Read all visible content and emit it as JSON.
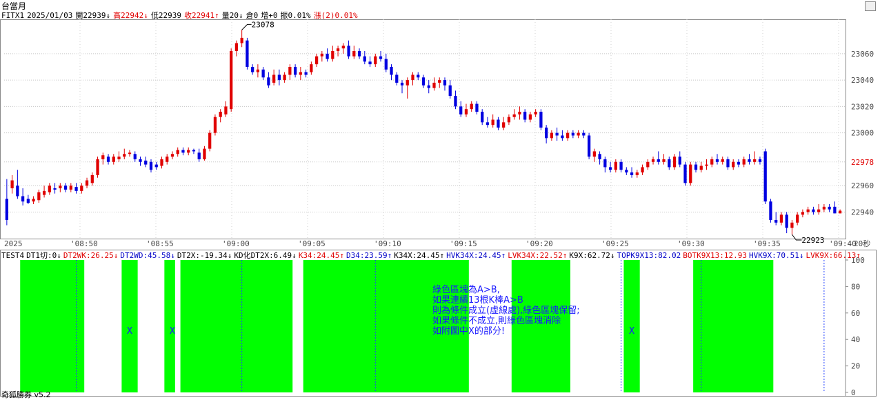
{
  "header": {
    "title": "台當月",
    "info": [
      {
        "text": "FITX1",
        "color": "#000000"
      },
      {
        "text": "2025/01/03",
        "color": "#000000"
      },
      {
        "text": "開22939↓",
        "color": "#000000"
      },
      {
        "text": "高22942↓",
        "color": "#e00000"
      },
      {
        "text": "低22939",
        "color": "#000000"
      },
      {
        "text": "收22941↑",
        "color": "#e00000"
      },
      {
        "text": "量20↓",
        "color": "#000000"
      },
      {
        "text": "倉0",
        "color": "#000000"
      },
      {
        "text": "增+0",
        "color": "#000000"
      },
      {
        "text": "振0.01%",
        "color": "#000000"
      },
      {
        "text": "漲(2)0.01%",
        "color": "#e00000"
      }
    ]
  },
  "chart_data": {
    "type": "candlestick",
    "ylim": [
      22923,
      23085
    ],
    "yticks": [
      "23060",
      "23040",
      "23020",
      "23000",
      "22978",
      "22960",
      "22940"
    ],
    "ylast": "22978",
    "xticks": [
      "2025",
      "'08:50",
      "'08:55",
      "'09:00",
      "'09:05",
      "'09:10",
      "'09:15",
      "'09:20",
      "'09:25",
      "'09:30",
      "'09:35",
      "'09:40"
    ],
    "xunit": "20秒",
    "high_label": "23078",
    "low_label": "22923",
    "candles": [
      [
        22950,
        22934,
        22930,
        22965
      ],
      [
        22958,
        22964,
        22954,
        22968
      ],
      [
        22960,
        22952,
        22950,
        22972
      ],
      [
        22952,
        22948,
        22945,
        22958
      ],
      [
        22950,
        22947,
        22946,
        22953
      ],
      [
        22948,
        22950,
        22946,
        22952
      ],
      [
        22949,
        22955,
        22947,
        22957
      ],
      [
        22953,
        22956,
        22951,
        22960
      ],
      [
        22955,
        22960,
        22953,
        22962
      ],
      [
        22958,
        22957,
        22954,
        22962
      ],
      [
        22958,
        22960,
        22955,
        22962
      ],
      [
        22960,
        22957,
        22955,
        22962
      ],
      [
        22957,
        22960,
        22955,
        22962
      ],
      [
        22959,
        22956,
        22954,
        22962
      ],
      [
        22956,
        22960,
        22954,
        22962
      ],
      [
        22960,
        22964,
        22958,
        22966
      ],
      [
        22962,
        22968,
        22960,
        22970
      ],
      [
        22968,
        22980,
        22966,
        22982
      ],
      [
        22980,
        22983,
        22976,
        22985
      ],
      [
        22982,
        22978,
        22976,
        22984
      ],
      [
        22978,
        22982,
        22976,
        22984
      ],
      [
        22980,
        22982,
        22978,
        22986
      ],
      [
        22982,
        22984,
        22980,
        22988
      ],
      [
        22984,
        22985,
        22982,
        22987
      ],
      [
        22984,
        22980,
        22978,
        22986
      ],
      [
        22980,
        22978,
        22975,
        22982
      ],
      [
        22979,
        22976,
        22974,
        22982
      ],
      [
        22978,
        22972,
        22970,
        22980
      ],
      [
        22976,
        22974,
        22972,
        22978
      ],
      [
        22975,
        22980,
        22973,
        22982
      ],
      [
        22978,
        22982,
        22976,
        22984
      ],
      [
        22982,
        22984,
        22980,
        22986
      ],
      [
        22984,
        22987,
        22982,
        22989
      ],
      [
        22987,
        22985,
        22983,
        22989
      ],
      [
        22985,
        22987,
        22983,
        22989
      ],
      [
        22987,
        22986,
        22984,
        22988
      ],
      [
        22985,
        22980,
        22978,
        22988
      ],
      [
        22980,
        22988,
        22979,
        22990
      ],
      [
        22988,
        23000,
        22986,
        23002
      ],
      [
        23000,
        23012,
        22998,
        23014
      ],
      [
        23012,
        23016,
        23008,
        23018
      ],
      [
        23014,
        23020,
        23012,
        23024
      ],
      [
        23018,
        23062,
        23016,
        23064
      ],
      [
        23062,
        23068,
        23058,
        23070
      ],
      [
        23068,
        23072,
        23065,
        23078
      ],
      [
        23070,
        23050,
        23048,
        23072
      ],
      [
        23050,
        23046,
        23044,
        23052
      ],
      [
        23046,
        23048,
        23042,
        23052
      ],
      [
        23048,
        23042,
        23040,
        23050
      ],
      [
        23042,
        23036,
        23034,
        23046
      ],
      [
        23038,
        23044,
        23036,
        23048
      ],
      [
        23044,
        23040,
        23036,
        23048
      ],
      [
        23040,
        23044,
        23038,
        23046
      ],
      [
        23044,
        23050,
        23040,
        23052
      ],
      [
        23050,
        23044,
        23042,
        23052
      ],
      [
        23044,
        23046,
        23040,
        23050
      ],
      [
        23046,
        23044,
        23042,
        23048
      ],
      [
        23046,
        23052,
        23044,
        23054
      ],
      [
        23052,
        23058,
        23050,
        23060
      ],
      [
        23058,
        23060,
        23054,
        23062
      ],
      [
        23060,
        23056,
        23054,
        23064
      ],
      [
        23056,
        23062,
        23054,
        23066
      ],
      [
        23062,
        23064,
        23058,
        23066
      ],
      [
        23064,
        23066,
        23060,
        23068
      ],
      [
        23066,
        23058,
        23056,
        23070
      ],
      [
        23058,
        23062,
        23056,
        23066
      ],
      [
        23062,
        23058,
        23056,
        23064
      ],
      [
        23058,
        23054,
        23052,
        23062
      ],
      [
        23054,
        23052,
        23050,
        23058
      ],
      [
        23052,
        23058,
        23050,
        23060
      ],
      [
        23058,
        23056,
        23054,
        23062
      ],
      [
        23056,
        23048,
        23046,
        23060
      ],
      [
        23050,
        23044,
        23040,
        23052
      ],
      [
        23044,
        23038,
        23036,
        23046
      ],
      [
        23038,
        23036,
        23030,
        23040
      ],
      [
        23036,
        23040,
        23026,
        23042
      ],
      [
        23040,
        23044,
        23036,
        23046
      ],
      [
        23044,
        23042,
        23040,
        23046
      ],
      [
        23042,
        23036,
        23034,
        23044
      ],
      [
        23036,
        23034,
        23030,
        23040
      ],
      [
        23034,
        23038,
        23032,
        23042
      ],
      [
        23038,
        23040,
        23034,
        23042
      ],
      [
        23040,
        23036,
        23032,
        23042
      ],
      [
        23036,
        23028,
        23026,
        23040
      ],
      [
        23028,
        23020,
        23018,
        23032
      ],
      [
        23020,
        23014,
        23012,
        23024
      ],
      [
        23014,
        23018,
        23012,
        23022
      ],
      [
        23018,
        23022,
        23016,
        23024
      ],
      [
        23022,
        23016,
        23014,
        23024
      ],
      [
        23016,
        23008,
        23006,
        23018
      ],
      [
        23008,
        23006,
        23004,
        23012
      ],
      [
        23006,
        23010,
        23004,
        23014
      ],
      [
        23010,
        23004,
        23002,
        23012
      ],
      [
        23004,
        23008,
        23002,
        23012
      ],
      [
        23008,
        23012,
        23006,
        23014
      ],
      [
        23012,
        23014,
        23010,
        23018
      ],
      [
        23014,
        23016,
        23010,
        23020
      ],
      [
        23016,
        23010,
        23008,
        23018
      ],
      [
        23010,
        23014,
        23008,
        23016
      ],
      [
        23014,
        23016,
        23012,
        23018
      ],
      [
        23016,
        23004,
        23002,
        23018
      ],
      [
        23004,
        22996,
        22992,
        23006
      ],
      [
        22996,
        23000,
        22994,
        23002
      ],
      [
        23000,
        22998,
        22994,
        23004
      ],
      [
        22998,
        22996,
        22994,
        23002
      ],
      [
        22996,
        23000,
        22994,
        23002
      ],
      [
        23000,
        22998,
        22996,
        23002
      ],
      [
        22998,
        23000,
        22996,
        23002
      ],
      [
        23000,
        22998,
        22996,
        23002
      ],
      [
        22998,
        22982,
        22980,
        23000
      ],
      [
        22982,
        22986,
        22978,
        22988
      ],
      [
        22984,
        22980,
        22976,
        22986
      ],
      [
        22980,
        22974,
        22970,
        22982
      ],
      [
        22974,
        22972,
        22970,
        22978
      ],
      [
        22972,
        22978,
        22970,
        22980
      ],
      [
        22978,
        22972,
        22970,
        22980
      ],
      [
        22972,
        22970,
        22968,
        22974
      ],
      [
        22970,
        22968,
        22966,
        22974
      ],
      [
        22968,
        22970,
        22966,
        22972
      ],
      [
        22970,
        22974,
        22968,
        22976
      ],
      [
        22974,
        22978,
        22972,
        22980
      ],
      [
        22978,
        22980,
        22976,
        22982
      ],
      [
        22980,
        22978,
        22976,
        22986
      ],
      [
        22978,
        22980,
        22976,
        22984
      ],
      [
        22980,
        22974,
        22972,
        22982
      ],
      [
        22974,
        22982,
        22972,
        22984
      ],
      [
        22982,
        22976,
        22974,
        22986
      ],
      [
        22976,
        22962,
        22960,
        22978
      ],
      [
        22962,
        22976,
        22960,
        22978
      ],
      [
        22976,
        22972,
        22970,
        22978
      ],
      [
        22972,
        22975,
        22970,
        22978
      ],
      [
        22975,
        22976,
        22972,
        22980
      ],
      [
        22976,
        22980,
        22974,
        22982
      ],
      [
        22980,
        22978,
        22976,
        22984
      ],
      [
        22978,
        22980,
        22976,
        22982
      ],
      [
        22980,
        22974,
        22972,
        22982
      ],
      [
        22974,
        22978,
        22972,
        22980
      ],
      [
        22978,
        22976,
        22974,
        22980
      ],
      [
        22976,
        22980,
        22974,
        22982
      ],
      [
        22980,
        22978,
        22976,
        22984
      ],
      [
        22978,
        22980,
        22976,
        22986
      ],
      [
        22980,
        22978,
        22976,
        22982
      ],
      [
        22986,
        22948,
        22946,
        22988
      ],
      [
        22948,
        22934,
        22932,
        22950
      ],
      [
        22934,
        22932,
        22930,
        22940
      ],
      [
        22932,
        22938,
        22930,
        22940
      ],
      [
        22938,
        22928,
        22924,
        22940
      ],
      [
        22928,
        22932,
        22923,
        22934
      ],
      [
        22932,
        22938,
        22930,
        22940
      ],
      [
        22938,
        22940,
        22936,
        22942
      ],
      [
        22940,
        22942,
        22938,
        22944
      ],
      [
        22942,
        22940,
        22938,
        22944
      ],
      [
        22940,
        22942,
        22938,
        22946
      ],
      [
        22942,
        22944,
        22940,
        22946
      ],
      [
        22944,
        22942,
        22940,
        22946
      ],
      [
        22944,
        22939,
        22939,
        22948
      ],
      [
        22939,
        22941,
        22939,
        22942
      ]
    ]
  },
  "indicator": {
    "items": [
      {
        "text": "TEST4",
        "color": "#000000"
      },
      {
        "text": "DT1切:0↓",
        "color": "#000000"
      },
      {
        "text": "DT2WK:26.25↓",
        "color": "#e00000"
      },
      {
        "text": "DT2WD:45.58↓",
        "color": "#0000c8"
      },
      {
        "text": "DT2X:-19.34↓",
        "color": "#000000"
      },
      {
        "text": "KD化DT2X:6.49↓",
        "color": "#000000"
      },
      {
        "text": "K34:24.45↑",
        "color": "#e00000"
      },
      {
        "text": "D34:23.59↑",
        "color": "#0000c8"
      },
      {
        "text": "K34X:24.45↑",
        "color": "#000000"
      },
      {
        "text": "HVK34X:24.45↑",
        "color": "#0000c8"
      },
      {
        "text": "LVK34X:22.52↑",
        "color": "#e00000"
      },
      {
        "text": "K9X:62.72↓",
        "color": "#000000"
      },
      {
        "text": "TOPK9X13:82.02",
        "color": "#0000c8"
      },
      {
        "text": "BOTK9X13:12.93",
        "color": "#e00000"
      },
      {
        "text": "HVK9X:70.51↓",
        "color": "#0000c8"
      },
      {
        "text": "LVK9X:66.13↑",
        "color": "#e00000"
      }
    ],
    "yticks": [
      "100",
      "80",
      "60",
      "40",
      "20",
      "0"
    ],
    "green_color": "#00ff00",
    "blocks_candles": [
      [
        3,
        14
      ],
      [
        22,
        24
      ],
      [
        30,
        31
      ],
      [
        33,
        53
      ],
      [
        56,
        86
      ],
      [
        95,
        105
      ],
      [
        116,
        118
      ],
      [
        129,
        143
      ]
    ],
    "dashed_candles": [
      13,
      44,
      69,
      115,
      130,
      153
    ],
    "x_marks": [
      23,
      31,
      117
    ],
    "x_mark_text": "X",
    "note_lines": [
      "綠色區塊為A>B,",
      "如果連續13根K棒A>B",
      "則為條件成立(虛線處),綠色區塊保留;",
      "如果條件不成立,則綠色區塊消除",
      "如附圖中X的部分!"
    ]
  },
  "footer": {
    "text": "奇狐勝券 v5.2"
  }
}
